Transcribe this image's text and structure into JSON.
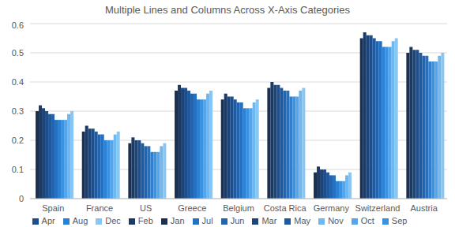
{
  "chart_data": {
    "type": "bar",
    "title": "Multiple Lines and Columns Across X-Axis Categories",
    "categories": [
      "Spain",
      "France",
      "US",
      "Greece",
      "Belgium",
      "Costa Rica",
      "Germany",
      "Switzerland",
      "Austria"
    ],
    "series": [
      {
        "name": "Jan",
        "color": "#1b2f4e",
        "values": [
          0.3,
          0.23,
          0.19,
          0.37,
          0.34,
          0.38,
          0.09,
          0.55,
          0.5
        ]
      },
      {
        "name": "Feb",
        "color": "#1c3a64",
        "values": [
          0.32,
          0.25,
          0.21,
          0.39,
          0.36,
          0.4,
          0.11,
          0.57,
          0.52
        ]
      },
      {
        "name": "Mar",
        "color": "#1d4577",
        "values": [
          0.31,
          0.24,
          0.2,
          0.38,
          0.35,
          0.39,
          0.1,
          0.56,
          0.51
        ]
      },
      {
        "name": "Apr",
        "color": "#1f4e8c",
        "values": [
          0.3,
          0.24,
          0.2,
          0.38,
          0.35,
          0.39,
          0.1,
          0.56,
          0.51
        ]
      },
      {
        "name": "May",
        "color": "#205a9e",
        "values": [
          0.29,
          0.23,
          0.19,
          0.37,
          0.34,
          0.38,
          0.09,
          0.55,
          0.5
        ]
      },
      {
        "name": "Jun",
        "color": "#2165b0",
        "values": [
          0.29,
          0.22,
          0.18,
          0.36,
          0.33,
          0.37,
          0.08,
          0.54,
          0.49
        ]
      },
      {
        "name": "Jul",
        "color": "#2471c2",
        "values": [
          0.27,
          0.22,
          0.18,
          0.36,
          0.33,
          0.37,
          0.08,
          0.54,
          0.49
        ]
      },
      {
        "name": "Aug",
        "color": "#2a80d3",
        "values": [
          0.27,
          0.2,
          0.16,
          0.34,
          0.31,
          0.35,
          0.06,
          0.52,
          0.47
        ]
      },
      {
        "name": "Sep",
        "color": "#3b92e0",
        "values": [
          0.27,
          0.2,
          0.16,
          0.34,
          0.31,
          0.35,
          0.06,
          0.52,
          0.47
        ]
      },
      {
        "name": "Oct",
        "color": "#55a5e8",
        "values": [
          0.27,
          0.2,
          0.16,
          0.34,
          0.31,
          0.35,
          0.06,
          0.52,
          0.47
        ]
      },
      {
        "name": "Nov",
        "color": "#6fb7ef",
        "values": [
          0.29,
          0.22,
          0.18,
          0.36,
          0.33,
          0.37,
          0.08,
          0.54,
          0.49
        ]
      },
      {
        "name": "Dec",
        "color": "#8ac6f3",
        "values": [
          0.3,
          0.23,
          0.19,
          0.37,
          0.34,
          0.38,
          0.09,
          0.55,
          0.5
        ]
      }
    ],
    "ylim": [
      0,
      0.6
    ],
    "yticks": [
      0,
      0.1,
      0.2,
      0.3,
      0.4,
      0.5,
      0.6
    ],
    "grid": true,
    "legend": "bottom"
  }
}
